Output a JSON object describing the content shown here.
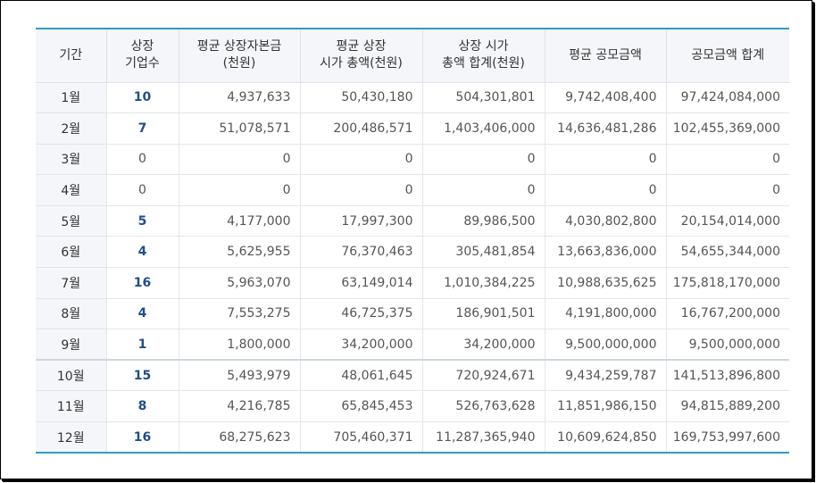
{
  "table": {
    "headers": [
      [
        "기간"
      ],
      [
        "상장",
        "기업수"
      ],
      [
        "평균 상장자본금",
        "(천원)"
      ],
      [
        "평균 상장",
        "시가 총액(천원)"
      ],
      [
        "상장 시가",
        "총액 합계(천원)"
      ],
      [
        "평균 공모금액"
      ],
      [
        "공모금액 합계"
      ]
    ],
    "rows": [
      [
        "1월",
        "10",
        "4,937,633",
        "50,430,180",
        "504,301,801",
        "9,742,408,400",
        "97,424,084,000"
      ],
      [
        "2월",
        "7",
        "51,078,571",
        "200,486,571",
        "1,403,406,000",
        "14,636,481,286",
        "102,455,369,000"
      ],
      [
        "3월",
        "0",
        "0",
        "0",
        "0",
        "0",
        "0"
      ],
      [
        "4월",
        "0",
        "0",
        "0",
        "0",
        "0",
        "0"
      ],
      [
        "5월",
        "5",
        "4,177,000",
        "17,997,300",
        "89,986,500",
        "4,030,802,800",
        "20,154,014,000"
      ],
      [
        "6월",
        "4",
        "5,625,955",
        "76,370,463",
        "305,481,854",
        "13,663,836,000",
        "54,655,344,000"
      ],
      [
        "7월",
        "16",
        "5,963,070",
        "63,149,014",
        "1,010,384,225",
        "10,988,635,625",
        "175,818,170,000"
      ],
      [
        "8월",
        "4",
        "7,553,275",
        "46,725,375",
        "186,901,501",
        "4,191,800,000",
        "16,767,200,000"
      ],
      [
        "9월",
        "1",
        "1,800,000",
        "34,200,000",
        "34,200,000",
        "9,500,000,000",
        "9,500,000,000"
      ],
      [
        "10월",
        "15",
        "5,493,979",
        "48,061,645",
        "720,924,671",
        "9,434,259,787",
        "141,513,896,800"
      ],
      [
        "11월",
        "8",
        "4,216,785",
        "65,845,453",
        "526,763,628",
        "11,851,986,150",
        "94,815,889,200"
      ],
      [
        "12월",
        "16",
        "68,275,623",
        "705,460,371",
        "11,287,365,940",
        "10,609,624,850",
        "169,753,997,600"
      ]
    ]
  }
}
